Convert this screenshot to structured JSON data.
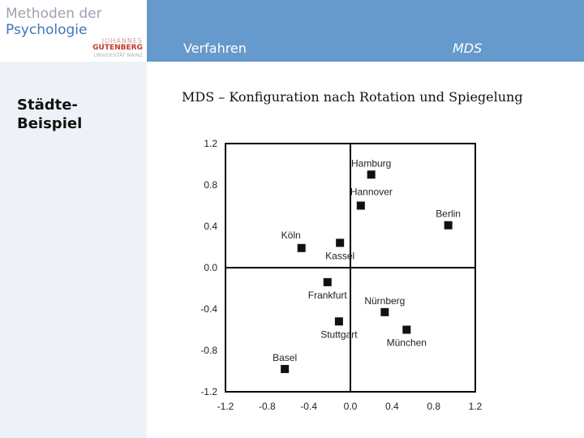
{
  "sidebar": {
    "brand_line1": "Methoden der",
    "brand_line2": "Psychologie",
    "university_logo": {
      "line1": "JOHANNES",
      "line2": "GUTENBERG",
      "line3": "UNIVERSITÄT MAINZ"
    },
    "section_title": "Städte-Beispiel"
  },
  "header": {
    "label": "Verfahren",
    "value": "MDS"
  },
  "slide": {
    "subtitle": "MDS – Konfiguration nach Rotation und Spiegelung"
  },
  "colors": {
    "header_bar": "#6699cc",
    "sidebar_bg": "#eef2f8",
    "brand_gray": "#9aa4ae",
    "brand_blue": "#3f77b8",
    "point": "#111111"
  },
  "chart_data": {
    "type": "scatter",
    "title": "",
    "xlabel": "",
    "ylabel": "",
    "xlim": [
      -1.2,
      1.2
    ],
    "ylim": [
      -1.2,
      1.2
    ],
    "xticks": [
      -1.2,
      -0.8,
      -0.4,
      0.0,
      0.4,
      0.8,
      1.2
    ],
    "yticks": [
      1.2,
      0.8,
      0.4,
      0.0,
      -0.4,
      -0.8,
      -1.2
    ],
    "xtick_labels": [
      "-1.2",
      "-0.8",
      "-0.4",
      "0.0",
      "0.4",
      "0.8",
      "1.2"
    ],
    "ytick_labels": [
      "1.2",
      "0.8",
      "0.4",
      "0.0",
      "-0.4",
      "-0.8",
      "-1.2"
    ],
    "grid": false,
    "reference_lines": {
      "x": 0.0,
      "y": 0.0
    },
    "points": [
      {
        "label": "Hamburg",
        "x": 0.2,
        "y": 0.9,
        "label_pos": "above"
      },
      {
        "label": "Hannover",
        "x": 0.1,
        "y": 0.6,
        "label_pos": "above-right"
      },
      {
        "label": "Berlin",
        "x": 0.94,
        "y": 0.41,
        "label_pos": "above"
      },
      {
        "label": "Köln",
        "x": -0.47,
        "y": 0.19,
        "label_pos": "above-left"
      },
      {
        "label": "Kassel",
        "x": -0.1,
        "y": 0.24,
        "label_pos": "below"
      },
      {
        "label": "Frankfurt",
        "x": -0.22,
        "y": -0.14,
        "label_pos": "below"
      },
      {
        "label": "Nürnberg",
        "x": 0.33,
        "y": -0.43,
        "label_pos": "above"
      },
      {
        "label": "Stuttgart",
        "x": -0.11,
        "y": -0.52,
        "label_pos": "below"
      },
      {
        "label": "München",
        "x": 0.54,
        "y": -0.6,
        "label_pos": "below"
      },
      {
        "label": "Basel",
        "x": -0.63,
        "y": -0.98,
        "label_pos": "above"
      }
    ]
  }
}
